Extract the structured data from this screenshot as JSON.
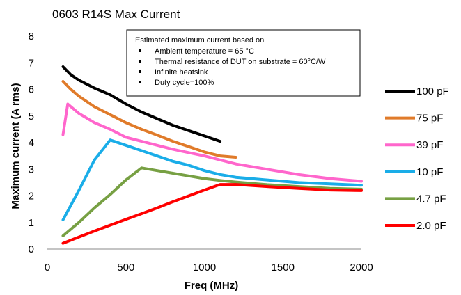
{
  "chart_data": {
    "type": "line",
    "title": "0603 R14S Max Current",
    "xlabel": "Freq (MHz)",
    "ylabel": "Maximum current (A rms)",
    "xlim": [
      0,
      2000
    ],
    "ylim": [
      0,
      8
    ],
    "xticks": [
      0,
      500,
      1000,
      1500,
      2000
    ],
    "yticks": [
      0,
      1,
      2,
      3,
      4,
      5,
      6,
      7,
      8
    ],
    "grid": false,
    "legend_position": "right",
    "annotation": {
      "heading": "Estimated maximum current based on",
      "bullets": [
        "Ambient temperature = 65 °C",
        "Thermal resistance of  DUT on substrate  = 60°C/W",
        "Infinite heatsink",
        "Duty cycle=100%"
      ]
    },
    "series": [
      {
        "name": "100 pF",
        "color": "#000000",
        "x": [
          100,
          150,
          200,
          300,
          400,
          500,
          600,
          700,
          800,
          900,
          1000,
          1100
        ],
        "y": [
          6.85,
          6.55,
          6.35,
          6.05,
          5.8,
          5.45,
          5.15,
          4.9,
          4.65,
          4.45,
          4.25,
          4.05
        ]
      },
      {
        "name": "75 pF",
        "color": "#E07B2A",
        "x": [
          100,
          150,
          200,
          300,
          400,
          500,
          600,
          700,
          800,
          900,
          1000,
          1100,
          1200
        ],
        "y": [
          6.3,
          6.0,
          5.75,
          5.35,
          5.05,
          4.75,
          4.5,
          4.28,
          4.05,
          3.85,
          3.65,
          3.5,
          3.45
        ]
      },
      {
        "name": "39 pF",
        "color": "#FF66CC",
        "x": [
          100,
          130,
          200,
          300,
          400,
          500,
          600,
          700,
          800,
          1000,
          1200,
          1400,
          1600,
          1800,
          2000
        ],
        "y": [
          4.3,
          5.45,
          5.1,
          4.75,
          4.5,
          4.2,
          4.05,
          3.9,
          3.75,
          3.5,
          3.2,
          3.0,
          2.8,
          2.65,
          2.55
        ]
      },
      {
        "name": "10 pF",
        "color": "#1AADE8",
        "x": [
          100,
          200,
          300,
          400,
          500,
          600,
          700,
          800,
          900,
          1000,
          1100,
          1200,
          1400,
          1600,
          1800,
          2000
        ],
        "y": [
          1.1,
          2.2,
          3.35,
          4.1,
          3.9,
          3.7,
          3.5,
          3.3,
          3.15,
          2.95,
          2.8,
          2.7,
          2.6,
          2.5,
          2.45,
          2.4
        ]
      },
      {
        "name": "4.7 pF",
        "color": "#77A043",
        "x": [
          100,
          200,
          300,
          400,
          500,
          600,
          700,
          800,
          900,
          1000,
          1100,
          1200,
          1400,
          1600,
          1800,
          2000
        ],
        "y": [
          0.5,
          1.0,
          1.55,
          2.05,
          2.6,
          3.05,
          2.95,
          2.85,
          2.75,
          2.65,
          2.58,
          2.52,
          2.42,
          2.35,
          2.28,
          2.25
        ]
      },
      {
        "name": "2.0 pF",
        "color": "#FF0000",
        "x": [
          100,
          200,
          300,
          400,
          500,
          600,
          700,
          800,
          900,
          1000,
          1100,
          1200,
          1400,
          1600,
          1800,
          2000
        ],
        "y": [
          0.22,
          0.45,
          0.68,
          0.9,
          1.12,
          1.33,
          1.55,
          1.78,
          2.0,
          2.22,
          2.43,
          2.43,
          2.35,
          2.28,
          2.22,
          2.2
        ]
      }
    ]
  }
}
